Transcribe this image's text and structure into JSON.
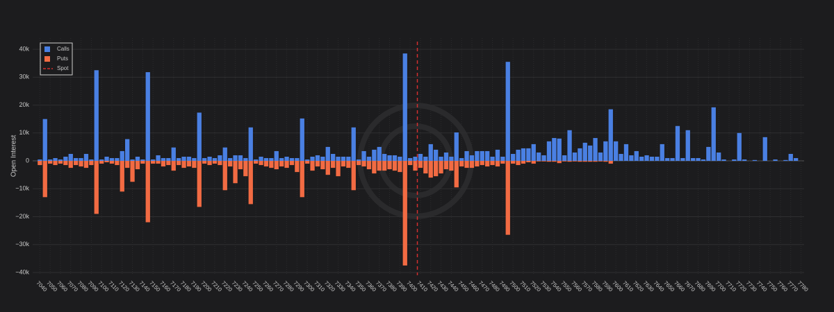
{
  "chart_data": {
    "type": "bar",
    "y_label": "Open Interest",
    "x": [
      7040,
      7045,
      7050,
      7055,
      7060,
      7065,
      7070,
      7075,
      7080,
      7085,
      7090,
      7095,
      7100,
      7105,
      7110,
      7115,
      7120,
      7125,
      7130,
      7135,
      7140,
      7145,
      7150,
      7155,
      7160,
      7165,
      7170,
      7175,
      7180,
      7185,
      7190,
      7195,
      7200,
      7205,
      7210,
      7215,
      7220,
      7225,
      7230,
      7235,
      7240,
      7245,
      7250,
      7255,
      7260,
      7265,
      7270,
      7275,
      7280,
      7285,
      7290,
      7295,
      7300,
      7305,
      7310,
      7315,
      7320,
      7325,
      7330,
      7335,
      7340,
      7345,
      7350,
      7355,
      7360,
      7365,
      7370,
      7375,
      7380,
      7385,
      7390,
      7395,
      7400,
      7405,
      7410,
      7415,
      7420,
      7425,
      7430,
      7435,
      7440,
      7445,
      7450,
      7455,
      7460,
      7465,
      7470,
      7475,
      7480,
      7485,
      7490,
      7495,
      7500,
      7505,
      7510,
      7515,
      7520,
      7525,
      7530,
      7535,
      7540,
      7545,
      7550,
      7555,
      7560,
      7565,
      7570,
      7575,
      7580,
      7585,
      7590,
      7595,
      7600,
      7605,
      7610,
      7615,
      7620,
      7625,
      7630,
      7635,
      7640,
      7645,
      7650,
      7655,
      7660,
      7665,
      7670,
      7675,
      7680,
      7685,
      7690,
      7695,
      7700,
      7705,
      7710,
      7715,
      7720,
      7725,
      7730,
      7735,
      7740,
      7745,
      7750,
      7755,
      7760,
      7765,
      7770,
      7775
    ],
    "series": [
      {
        "name": "Calls",
        "color": "#4a80e3",
        "values": [
          500,
          15000,
          500,
          1000,
          500,
          1500,
          2500,
          1000,
          1000,
          2500,
          500,
          32500,
          500,
          1500,
          1000,
          1000,
          3500,
          7800,
          500,
          1500,
          500,
          31800,
          500,
          2000,
          1000,
          1000,
          4800,
          1000,
          1500,
          1500,
          1000,
          17300,
          1000,
          1500,
          1000,
          2000,
          4800,
          1000,
          2000,
          2000,
          1000,
          12000,
          500,
          1500,
          1000,
          1000,
          3500,
          1000,
          1500,
          1000,
          1000,
          15200,
          500,
          1500,
          2000,
          1500,
          5000,
          2500,
          1500,
          1500,
          1500,
          12000,
          500,
          3500,
          1500,
          4000,
          5000,
          2500,
          2000,
          2000,
          1500,
          38500,
          1000,
          1500,
          2500,
          1500,
          6000,
          4000,
          1500,
          3000,
          1500,
          10200,
          1000,
          3500,
          2000,
          3500,
          3500,
          3500,
          1500,
          4000,
          1500,
          35500,
          2500,
          4000,
          4500,
          4500,
          6000,
          3000,
          2000,
          7000,
          8200,
          8000,
          2000,
          11000,
          3000,
          4500,
          6500,
          5500,
          8200,
          3000,
          7000,
          18500,
          7000,
          2500,
          6000,
          2000,
          3500,
          1500,
          2000,
          1500,
          1500,
          6000,
          1000,
          1000,
          12500,
          1000,
          11000,
          1000,
          1000,
          500,
          5000,
          19200,
          3000,
          500,
          0,
          500,
          10000,
          500,
          0,
          300,
          0,
          8500,
          0,
          500,
          0,
          300,
          2500,
          1000
        ]
      },
      {
        "name": "Puts",
        "color": "#f26b43",
        "values": [
          -1500,
          -13000,
          -1000,
          -1500,
          -1000,
          -1500,
          -2500,
          -1500,
          -2000,
          -2500,
          -1500,
          -19000,
          -1000,
          -500,
          -1000,
          -1500,
          -11000,
          -2500,
          -7500,
          -3000,
          -1000,
          -22000,
          -1000,
          -1000,
          -2000,
          -1500,
          -3500,
          -1500,
          -2500,
          -2000,
          -2500,
          -16500,
          -1000,
          -1500,
          -1000,
          -1500,
          -10500,
          -2000,
          -8000,
          -3000,
          -5500,
          -15500,
          -1000,
          -1500,
          -2000,
          -2500,
          -3000,
          -2000,
          -2500,
          -1500,
          -4000,
          -13000,
          -1000,
          -3500,
          -2000,
          -3000,
          -5000,
          -2500,
          -5500,
          -2000,
          -2500,
          -10500,
          -1500,
          -2000,
          -3000,
          -4500,
          -3500,
          -3500,
          -3000,
          -3500,
          -4000,
          -37500,
          -1500,
          -3500,
          -2500,
          -4500,
          -6000,
          -5500,
          -4500,
          -3000,
          -3500,
          -9500,
          -2000,
          -2500,
          -2500,
          -2000,
          -1500,
          -2000,
          -1500,
          -2000,
          -1000,
          -26500,
          -1000,
          -1500,
          -1000,
          -500,
          -1000,
          -200,
          -200,
          -300,
          -300,
          -800,
          -200,
          -300,
          -200,
          -300,
          -300,
          -300,
          -300,
          -200,
          -300,
          -1000,
          0,
          0,
          0,
          0,
          0,
          0,
          0,
          0,
          0,
          0,
          0,
          0,
          0,
          0,
          0,
          0,
          0,
          0,
          0,
          0,
          0,
          0,
          0,
          0,
          0,
          0,
          0,
          0,
          0,
          0,
          0,
          0,
          0,
          0,
          0,
          0
        ]
      }
    ],
    "spot": {
      "name": "Spot",
      "value": 7407,
      "color": "#d32f2f"
    },
    "xlim": [
      7033,
      7783
    ],
    "xticks": [
      7040,
      7050,
      7060,
      7070,
      7080,
      7090,
      7100,
      7110,
      7120,
      7130,
      7140,
      7150,
      7160,
      7170,
      7180,
      7190,
      7200,
      7210,
      7220,
      7230,
      7240,
      7250,
      7260,
      7270,
      7280,
      7290,
      7300,
      7310,
      7320,
      7330,
      7340,
      7350,
      7360,
      7370,
      7380,
      7390,
      7400,
      7410,
      7420,
      7430,
      7440,
      7450,
      7460,
      7470,
      7480,
      7490,
      7500,
      7510,
      7520,
      7530,
      7540,
      7550,
      7560,
      7570,
      7580,
      7590,
      7600,
      7610,
      7620,
      7630,
      7640,
      7650,
      7660,
      7670,
      7680,
      7690,
      7700,
      7710,
      7720,
      7730,
      7740,
      7750,
      7760,
      7770,
      7780
    ],
    "ylim": [
      -41000,
      44000
    ],
    "yticks": [
      {
        "value": -40000,
        "label": "−40k"
      },
      {
        "value": -30000,
        "label": "−30k"
      },
      {
        "value": -20000,
        "label": "−20k"
      },
      {
        "value": -10000,
        "label": "−10k"
      },
      0,
      {
        "value": 10000,
        "label": "10k"
      },
      {
        "value": 20000,
        "label": "20k"
      },
      {
        "value": 30000,
        "label": "30k"
      },
      {
        "value": 40000,
        "label": "40k"
      }
    ],
    "grid": true,
    "legend": "top-left"
  }
}
